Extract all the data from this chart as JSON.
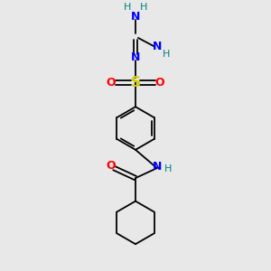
{
  "background_color": "#e8e8e8",
  "atom_colors": {
    "C": "#000000",
    "N": "#0000ff",
    "O": "#ff0000",
    "S": "#cccc00",
    "H": "#008080"
  },
  "figsize": [
    3.0,
    3.0
  ],
  "dpi": 100
}
